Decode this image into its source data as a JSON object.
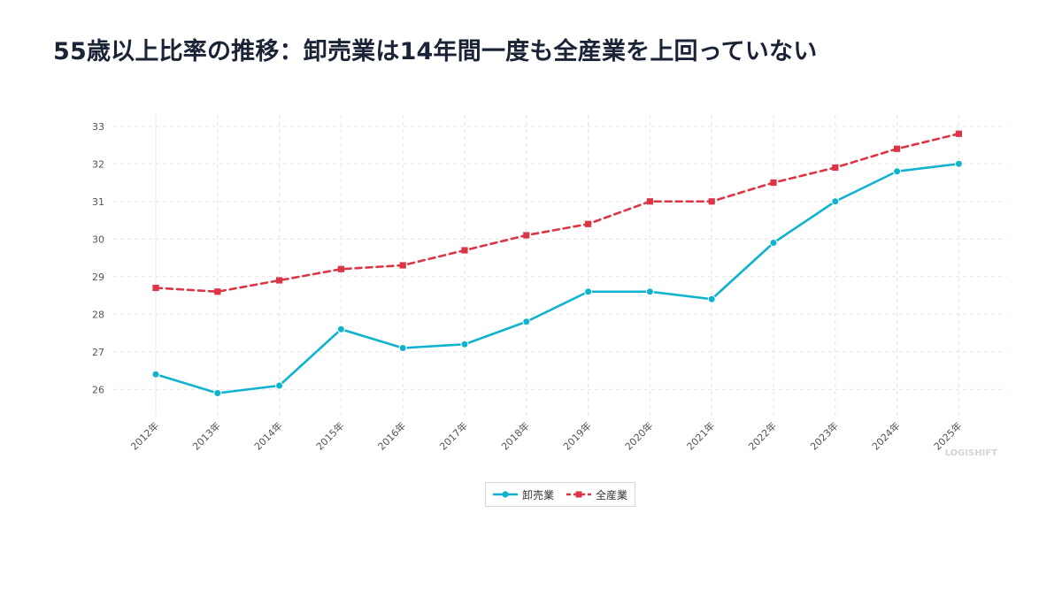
{
  "title": "55歳以上比率の推移：卸売業は14年間一度も全産業を上回っていない",
  "watermark": "LOGISHIFT",
  "chart_data": {
    "type": "line",
    "categories": [
      "2012年",
      "2013年",
      "2014年",
      "2015年",
      "2016年",
      "2017年",
      "2018年",
      "2019年",
      "2020年",
      "2021年",
      "2022年",
      "2023年",
      "2024年",
      "2025年"
    ],
    "series": [
      {
        "name": "卸売業",
        "color": "#0fb3d0",
        "marker": "circle",
        "dashed": false,
        "values": [
          26.4,
          25.9,
          26.1,
          27.6,
          27.1,
          27.2,
          27.8,
          28.6,
          28.6,
          28.4,
          29.9,
          31.0,
          31.8,
          32.0
        ]
      },
      {
        "name": "全産業",
        "color": "#dc3545",
        "marker": "square",
        "dashed": true,
        "values": [
          28.7,
          28.6,
          28.9,
          29.2,
          29.3,
          29.7,
          30.1,
          30.4,
          31.0,
          31.0,
          31.5,
          31.9,
          32.4,
          32.8
        ]
      }
    ],
    "yticks": [
      26,
      27,
      28,
      29,
      30,
      31,
      32,
      33
    ],
    "ylim": [
      25.3,
      33.3
    ],
    "grid": true,
    "legend_position": "bottom-center"
  }
}
